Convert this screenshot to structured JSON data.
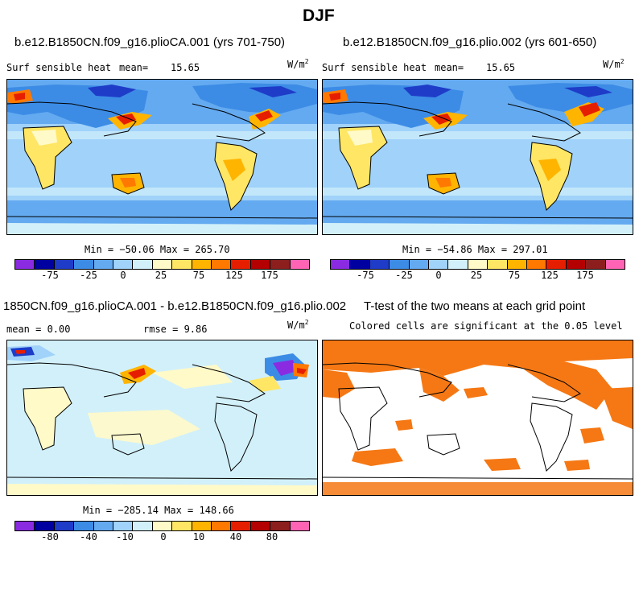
{
  "figure_title": "DJF",
  "panels": [
    {
      "title": "b.e12.B1850CN.f09_g16.plioCA.001 (yrs 701-750)",
      "left_label": "Surf sensible heat",
      "mean_label": "mean=",
      "mean_value": "15.65",
      "units_base": "W/m",
      "units_exp": "2",
      "minmax": "Min = −50.06 Max = 265.70"
    },
    {
      "title": "b.e12.B1850CN.f09_g16.plio.002 (yrs 601-650)",
      "left_label": "Surf sensible heat",
      "mean_label": "mean=",
      "mean_value": "15.65",
      "units_base": "W/m",
      "units_exp": "2",
      "minmax": "Min = −54.86 Max = 297.01"
    },
    {
      "title": "1850CN.f09_g16.plioCA.001 - b.e12.B1850CN.f09_g16.plio.002",
      "mean_text": "mean =   0.00",
      "rmse_text": "rmse =   9.86",
      "units_base": "W/m",
      "units_exp": "2",
      "minmax": "Min = −285.14 Max = 148.66"
    },
    {
      "title": "T-test of the two means at each grid point",
      "subtitle": "Colored cells are significant at the 0.05 level"
    }
  ],
  "chart_data": [
    {
      "type": "heatmap",
      "title": "b.e12.B1850CN.f09_g16.plioCA.001 (yrs 701-750)",
      "variable": "Surf sensible heat",
      "units": "W/m^2",
      "mean": 15.65,
      "min": -50.06,
      "max": 265.7,
      "colorbar_ticks": [
        "-75",
        "-25",
        "0",
        "25",
        "75",
        "125",
        "175"
      ],
      "colorbar_colors": [
        "#8a2be2",
        "#0000a0",
        "#1e3cc8",
        "#3c8ce6",
        "#64aaf0",
        "#a0d2fa",
        "#d2f0fa",
        "#fffac8",
        "#ffe664",
        "#ffb400",
        "#ff7800",
        "#e61e00",
        "#b40000",
        "#8c1e1e",
        "#ff64b4"
      ]
    },
    {
      "type": "heatmap",
      "title": "b.e12.B1850CN.f09_g16.plio.002 (yrs 601-650)",
      "variable": "Surf sensible heat",
      "units": "W/m^2",
      "mean": 15.65,
      "min": -54.86,
      "max": 297.01,
      "colorbar_ticks": [
        "-75",
        "-25",
        "0",
        "25",
        "75",
        "125",
        "175"
      ],
      "colorbar_colors": [
        "#8a2be2",
        "#0000a0",
        "#1e3cc8",
        "#3c8ce6",
        "#64aaf0",
        "#a0d2fa",
        "#d2f0fa",
        "#fffac8",
        "#ffe664",
        "#ffb400",
        "#ff7800",
        "#e61e00",
        "#b40000",
        "#8c1e1e",
        "#ff64b4"
      ]
    },
    {
      "type": "heatmap",
      "title": "1850CN.f09_g16.plioCA.001 - b.e12.B1850CN.f09_g16.plio.002",
      "units": "W/m^2",
      "mean": 0.0,
      "rmse": 9.86,
      "min": -285.14,
      "max": 148.66,
      "colorbar_ticks": [
        "-80",
        "-40",
        "-10",
        "0",
        "10",
        "40",
        "80"
      ],
      "colorbar_colors": [
        "#8a2be2",
        "#0000a0",
        "#1e3cc8",
        "#3c8ce6",
        "#64aaf0",
        "#a0d2fa",
        "#d2f0fa",
        "#fffac8",
        "#ffe664",
        "#ffb400",
        "#ff7800",
        "#e61e00",
        "#b40000",
        "#8c1e1e",
        "#ff64b4"
      ]
    },
    {
      "type": "heatmap",
      "title": "T-test of the two means at each grid point",
      "subtitle": "Colored cells are significant at the 0.05 level",
      "significance_level": 0.05,
      "significant_color": "#f57814"
    }
  ]
}
